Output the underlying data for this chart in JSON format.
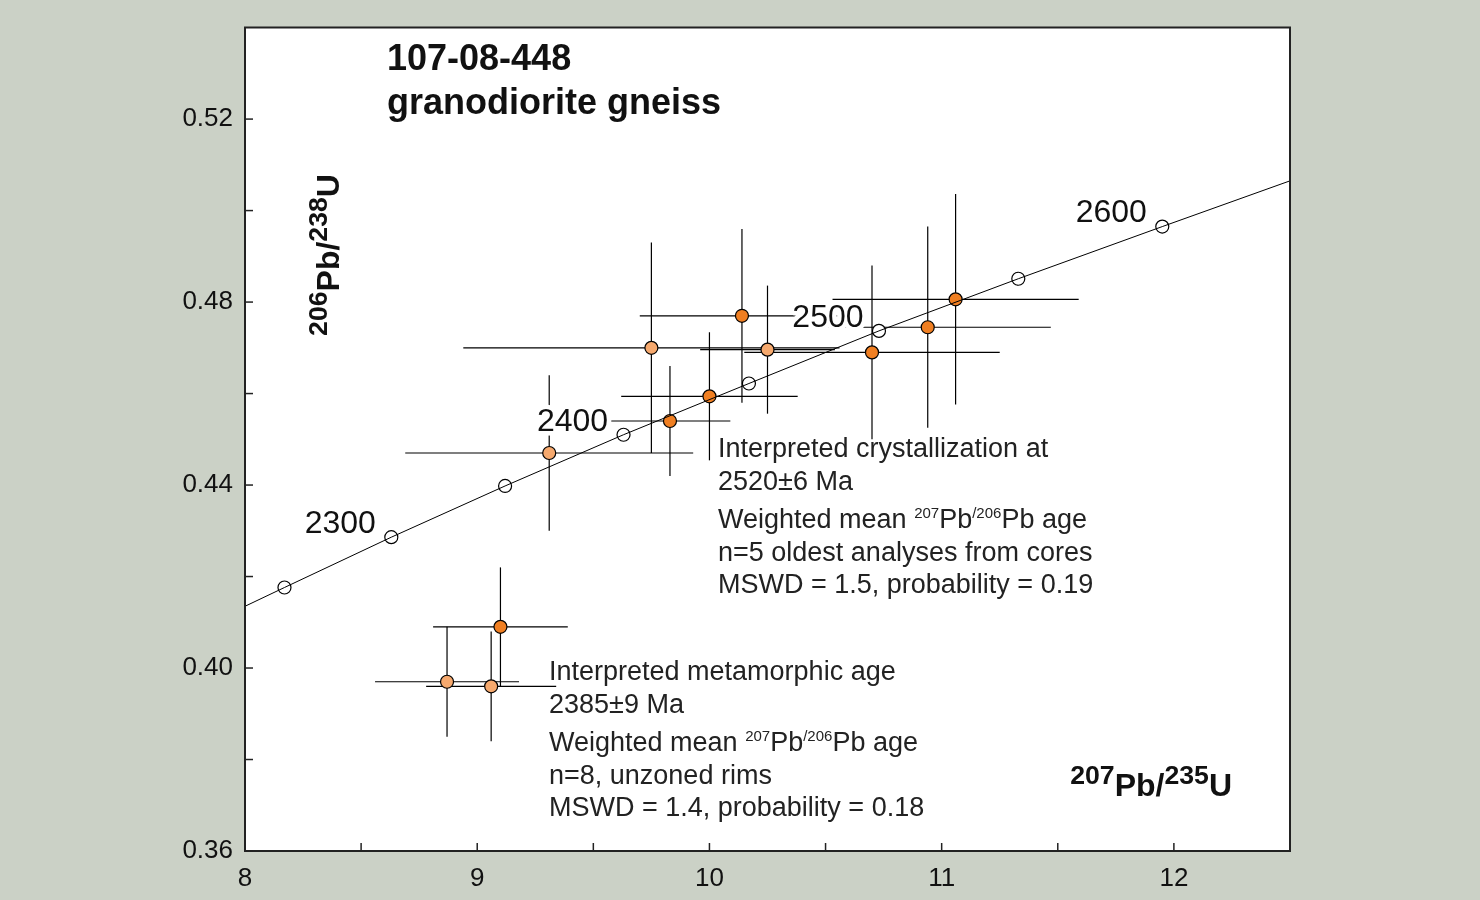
{
  "chart_data": {
    "type": "scatter",
    "title": "107-08-448",
    "subtitle": "granodiorite gneiss",
    "xlabel": "$^{207}$Pb/$^{235}$U",
    "ylabel": "$^{206}$Pb/$^{238}$U",
    "xlim": [
      8,
      12.5
    ],
    "ylim": [
      0.36,
      0.54
    ],
    "xticks": [
      8,
      {
        "value": 8.5,
        "label": null
      },
      9,
      {
        "value": 9.5,
        "label": null
      },
      10,
      {
        "value": 10.5,
        "label": null
      },
      11,
      {
        "value": 11.5,
        "label": null
      },
      12
    ],
    "yticks": [
      {
        "value": 0.36,
        "label": "0.36"
      },
      {
        "value": 0.38,
        "label": null
      },
      {
        "value": 0.4,
        "label": "0.40"
      },
      {
        "value": 0.42,
        "label": null
      },
      {
        "value": 0.44,
        "label": "0.44"
      },
      {
        "value": 0.46,
        "label": null
      },
      {
        "value": 0.48,
        "label": "0.48"
      },
      {
        "value": 0.5,
        "label": null
      },
      {
        "value": 0.52,
        "label": "0.52"
      }
    ],
    "grid": false,
    "legend": false,
    "series": [
      {
        "type": "line",
        "color": "#000000",
        "marker": "none",
        "x": [
          8.0,
          8.17,
          8.63,
          9.12,
          9.63,
          10.17,
          10.73,
          11.33,
          11.95,
          12.5
        ],
        "values": [
          0.4135,
          0.4176,
          0.4286,
          0.4398,
          0.451,
          0.4622,
          0.4737,
          0.4851,
          0.4965,
          0.5065
        ]
      },
      {
        "color": "#f6a96e",
        "marker": "circle",
        "x": [
          9.31,
          9.75,
          8.87,
          9.06,
          10.25
        ],
        "values": [
          0.447,
          0.47,
          0.397,
          0.396,
          0.4696
        ],
        "xerrors": [
          0.62,
          0.81,
          0.31,
          0.28,
          0.29
        ],
        "errors": [
          0.017,
          0.023,
          0.012,
          0.012,
          0.014
        ]
      },
      {
        "color": "#f07f22",
        "marker": "circle",
        "x": [
          9.1,
          10.14,
          9.83,
          10.7,
          11.06,
          10.94,
          10.0
        ],
        "values": [
          0.409,
          0.477,
          0.454,
          0.469,
          0.4806,
          0.4745,
          0.4594
        ],
        "xerrors": [
          0.29,
          0.44,
          0.26,
          0.55,
          0.53,
          0.53,
          0.38
        ],
        "errors": [
          0.013,
          0.019,
          0.012,
          0.019,
          0.023,
          0.022,
          0.014
        ]
      },
      {
        "color": "#ffffff",
        "marker": "circle",
        "x": [
          8.17,
          8.63,
          9.12,
          9.63,
          10.17,
          10.73,
          11.33,
          11.95
        ],
        "values": [
          0.4176,
          0.4286,
          0.4398,
          0.451,
          0.4622,
          0.4737,
          0.4851,
          0.4965
        ]
      }
    ],
    "annotations": [
      {
        "text": "2300",
        "x": 8.63,
        "y": 0.4286
      },
      {
        "text": "2400",
        "x": 9.63,
        "y": 0.451
      },
      {
        "text": "2500",
        "x": 10.73,
        "y": 0.4737
      },
      {
        "text": "2600",
        "x": 11.95,
        "y": 0.4965
      },
      "Interpreted crystallization at\n2520±6 Ma\nWeighted mean $^{207}$Pb$^{/206}$Pb age\nn=5 oldest analyses from cores\nMSWD = 1.5, probability = 0.19",
      "Interpreted metamorphic age\n2385±9 Ma\nWeighted mean $^{207}$Pb$^{/206}$Pb age\nn=8, unzoned rims\nMSWD = 1.4, probability = 0.18"
    ]
  }
}
